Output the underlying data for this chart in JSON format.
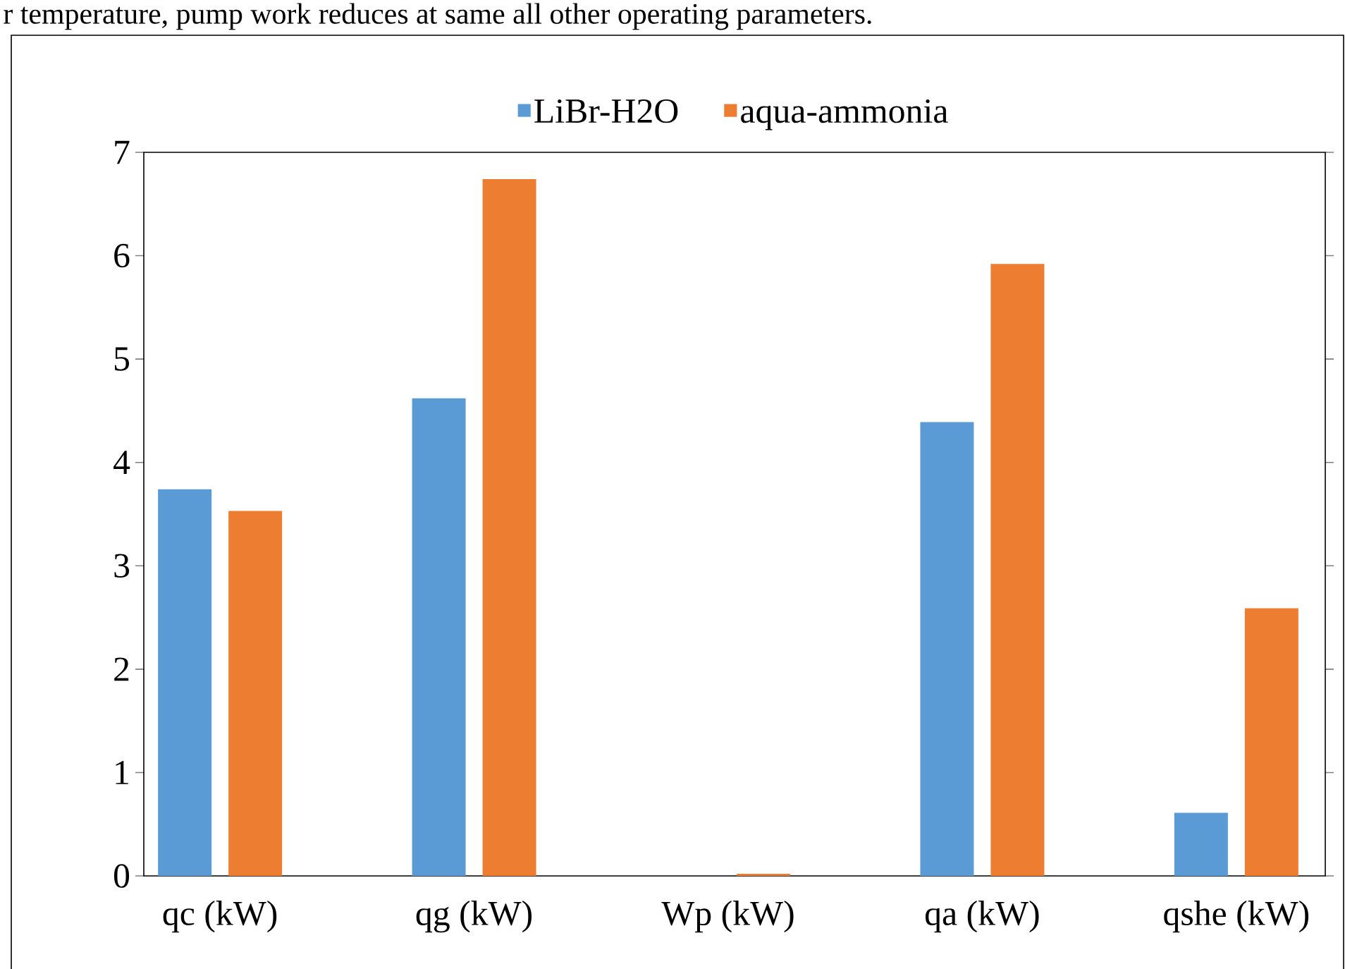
{
  "chart_data": {
    "type": "bar",
    "annotations": [
      "r temperature, pump work reduces at same all other operating parameters."
    ],
    "categories": [
      "qc (kW)",
      "qg (kW)",
      "Wp (kW)",
      "qa (kW)",
      "qshe (kW)"
    ],
    "series": [
      {
        "name": "LiBr-H2O",
        "color": "#5b9bd5",
        "values": [
          3.74,
          4.62,
          0,
          4.39,
          0.61
        ]
      },
      {
        "name": "aqua-ammonia",
        "color": "#ed7d31",
        "values": [
          3.53,
          6.74,
          0.02,
          5.92,
          2.59
        ]
      }
    ],
    "ylim": [
      0,
      7
    ],
    "yticks": [
      0,
      1,
      2,
      3,
      4,
      5,
      6,
      7
    ],
    "grid": false,
    "legend": "top"
  }
}
